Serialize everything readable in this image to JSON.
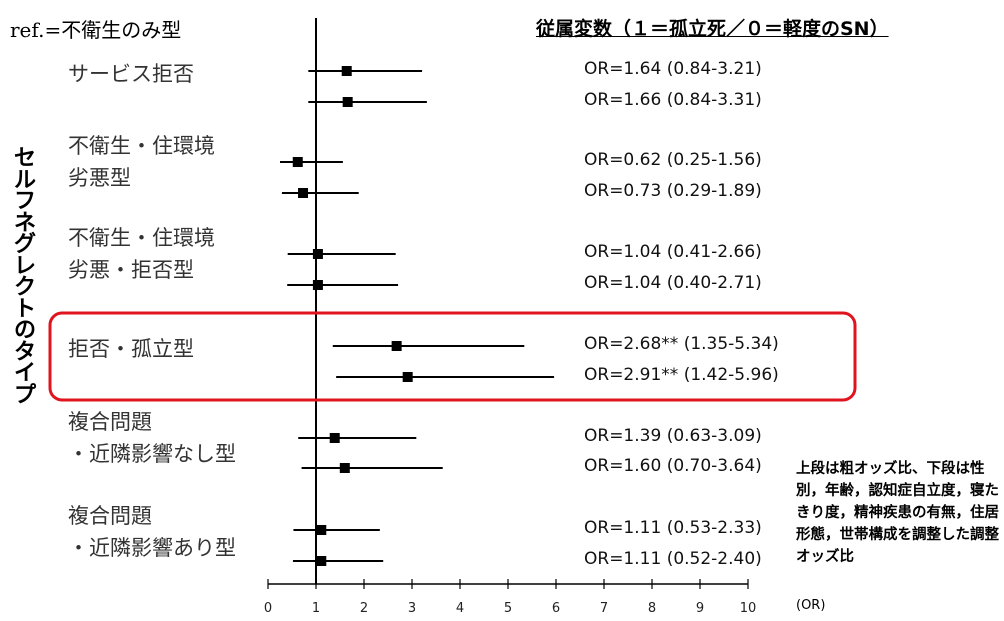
{
  "reference_label": "ref.=不衛生のみ型",
  "dependent_variable_label": "従属変数（１＝孤立死／０＝軽度のSN）",
  "y_axis_label": "セルフネグレクトのタイプ",
  "footnote": "上段は粗オッズ比、下段は性別，年齢，認知症自立度，寝たきり度，精神疾患の有無，住居形態，世帯構成を調整した調整オッズ比",
  "x_unit_label": "(OR)",
  "colors": {
    "highlight_box": "#e0141e",
    "marker": "#000000"
  },
  "chart_data": {
    "type": "forest",
    "x_ticks": [
      0,
      1,
      2,
      3,
      4,
      5,
      6,
      7,
      8,
      9,
      10
    ],
    "xlim": [
      0,
      10
    ],
    "reference_line": 1,
    "categories": [
      {
        "label": [
          "サービス拒否"
        ],
        "highlight": false,
        "estimates": [
          {
            "or": 1.64,
            "low": 0.84,
            "high": 3.21,
            "text": "OR=1.64 (0.84-3.21)"
          },
          {
            "or": 1.66,
            "low": 0.84,
            "high": 3.31,
            "text": "OR=1.66 (0.84-3.31)"
          }
        ]
      },
      {
        "label": [
          "不衛生・住環境",
          "劣悪型"
        ],
        "highlight": false,
        "estimates": [
          {
            "or": 0.62,
            "low": 0.25,
            "high": 1.56,
            "text": "OR=0.62 (0.25-1.56)"
          },
          {
            "or": 0.73,
            "low": 0.29,
            "high": 1.89,
            "text": "OR=0.73 (0.29-1.89)"
          }
        ]
      },
      {
        "label": [
          "不衛生・住環境",
          "劣悪・拒否型"
        ],
        "highlight": false,
        "estimates": [
          {
            "or": 1.04,
            "low": 0.41,
            "high": 2.66,
            "text": "OR=1.04 (0.41-2.66)"
          },
          {
            "or": 1.04,
            "low": 0.4,
            "high": 2.71,
            "text": "OR=1.04 (0.40-2.71)"
          }
        ]
      },
      {
        "label": [
          "拒否・孤立型"
        ],
        "highlight": true,
        "estimates": [
          {
            "or": 2.68,
            "low": 1.35,
            "high": 5.34,
            "text": "OR=2.68** (1.35-5.34)"
          },
          {
            "or": 2.91,
            "low": 1.42,
            "high": 5.96,
            "text": "OR=2.91** (1.42-5.96)"
          }
        ]
      },
      {
        "label": [
          "複合問題",
          "・近隣影響なし型"
        ],
        "highlight": false,
        "estimates": [
          {
            "or": 1.39,
            "low": 0.63,
            "high": 3.09,
            "text": "OR=1.39 (0.63-3.09)"
          },
          {
            "or": 1.6,
            "low": 0.7,
            "high": 3.64,
            "text": "OR=1.60 (0.70-3.64)"
          }
        ]
      },
      {
        "label": [
          "複合問題",
          "・近隣影響あり型"
        ],
        "highlight": false,
        "estimates": [
          {
            "or": 1.11,
            "low": 0.53,
            "high": 2.33,
            "text": "OR=1.11 (0.53-2.33)"
          },
          {
            "or": 1.11,
            "low": 0.52,
            "high": 2.4,
            "text": "OR=1.11 (0.52-2.40)"
          }
        ]
      }
    ]
  }
}
